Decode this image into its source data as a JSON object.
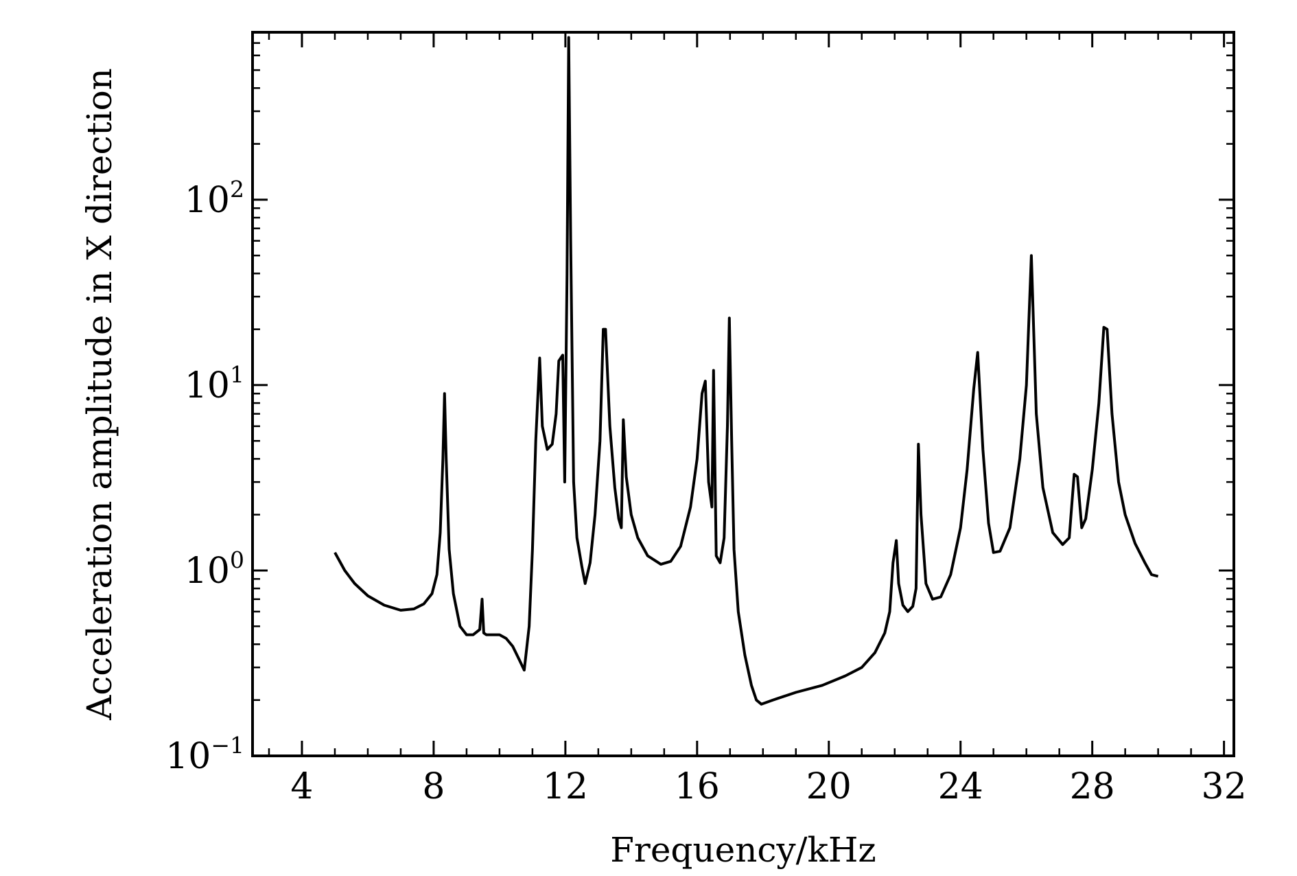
{
  "chart_data": {
    "type": "line",
    "title": "",
    "xlabel": "Frequency/kHz",
    "ylabel": "Acceleration amplitude in X direction",
    "xscale": "linear",
    "yscale": "log",
    "xlim": [
      2.5,
      32.3
    ],
    "ylim": [
      0.1,
      800
    ],
    "grid": false,
    "x_ticks": [
      4,
      8,
      12,
      16,
      20,
      24,
      28,
      32
    ],
    "y_ticks": [
      {
        "value": 0.1,
        "base": "10",
        "exp": "−1"
      },
      {
        "value": 1,
        "base": "10",
        "exp": "0"
      },
      {
        "value": 10,
        "base": "10",
        "exp": "1"
      },
      {
        "value": 100,
        "base": "10",
        "exp": "2"
      }
    ],
    "series": [
      {
        "color": "#000000",
        "points": [
          [
            5.0,
            1.25
          ],
          [
            5.3,
            1.0
          ],
          [
            5.6,
            0.85
          ],
          [
            6.0,
            0.73
          ],
          [
            6.5,
            0.65
          ],
          [
            7.0,
            0.61
          ],
          [
            7.4,
            0.62
          ],
          [
            7.7,
            0.66
          ],
          [
            7.95,
            0.75
          ],
          [
            8.1,
            0.95
          ],
          [
            8.2,
            1.6
          ],
          [
            8.28,
            4.0
          ],
          [
            8.33,
            9.0
          ],
          [
            8.38,
            4.0
          ],
          [
            8.47,
            1.3
          ],
          [
            8.6,
            0.75
          ],
          [
            8.8,
            0.5
          ],
          [
            9.0,
            0.45
          ],
          [
            9.2,
            0.45
          ],
          [
            9.4,
            0.48
          ],
          [
            9.47,
            0.7
          ],
          [
            9.52,
            0.46
          ],
          [
            9.6,
            0.45
          ],
          [
            9.8,
            0.45
          ],
          [
            10.0,
            0.45
          ],
          [
            10.2,
            0.43
          ],
          [
            10.4,
            0.39
          ],
          [
            10.6,
            0.33
          ],
          [
            10.75,
            0.29
          ],
          [
            10.9,
            0.5
          ],
          [
            11.0,
            1.3
          ],
          [
            11.1,
            5.0
          ],
          [
            11.22,
            14.0
          ],
          [
            11.3,
            6.0
          ],
          [
            11.45,
            4.5
          ],
          [
            11.6,
            4.8
          ],
          [
            11.72,
            7.0
          ],
          [
            11.8,
            13.5
          ],
          [
            11.92,
            14.5
          ],
          [
            11.98,
            3.0
          ],
          [
            12.05,
            40.0
          ],
          [
            12.1,
            750.0
          ],
          [
            12.16,
            60.0
          ],
          [
            12.25,
            3.0
          ],
          [
            12.35,
            1.5
          ],
          [
            12.5,
            1.05
          ],
          [
            12.6,
            0.85
          ],
          [
            12.75,
            1.1
          ],
          [
            12.9,
            2.0
          ],
          [
            13.05,
            5.0
          ],
          [
            13.15,
            20.0
          ],
          [
            13.22,
            20.0
          ],
          [
            13.35,
            6.0
          ],
          [
            13.5,
            2.8
          ],
          [
            13.62,
            1.9
          ],
          [
            13.7,
            1.7
          ],
          [
            13.76,
            6.5
          ],
          [
            13.85,
            3.2
          ],
          [
            14.0,
            2.0
          ],
          [
            14.2,
            1.5
          ],
          [
            14.5,
            1.2
          ],
          [
            14.9,
            1.08
          ],
          [
            15.2,
            1.12
          ],
          [
            15.5,
            1.35
          ],
          [
            15.8,
            2.2
          ],
          [
            16.0,
            4.0
          ],
          [
            16.15,
            9.0
          ],
          [
            16.25,
            10.5
          ],
          [
            16.35,
            3.0
          ],
          [
            16.45,
            2.2
          ],
          [
            16.5,
            12.0
          ],
          [
            16.58,
            1.2
          ],
          [
            16.7,
            1.1
          ],
          [
            16.82,
            1.5
          ],
          [
            16.92,
            6.0
          ],
          [
            16.98,
            23.0
          ],
          [
            17.05,
            5.0
          ],
          [
            17.12,
            1.3
          ],
          [
            17.25,
            0.6
          ],
          [
            17.45,
            0.35
          ],
          [
            17.65,
            0.24
          ],
          [
            17.8,
            0.2
          ],
          [
            17.95,
            0.19
          ],
          [
            18.3,
            0.2
          ],
          [
            19.0,
            0.22
          ],
          [
            19.8,
            0.24
          ],
          [
            20.5,
            0.27
          ],
          [
            21.0,
            0.3
          ],
          [
            21.4,
            0.36
          ],
          [
            21.7,
            0.46
          ],
          [
            21.85,
            0.6
          ],
          [
            21.95,
            1.1
          ],
          [
            22.05,
            1.45
          ],
          [
            22.12,
            0.85
          ],
          [
            22.25,
            0.65
          ],
          [
            22.4,
            0.6
          ],
          [
            22.55,
            0.64
          ],
          [
            22.65,
            0.8
          ],
          [
            22.72,
            4.8
          ],
          [
            22.8,
            2.0
          ],
          [
            22.95,
            0.85
          ],
          [
            23.15,
            0.7
          ],
          [
            23.4,
            0.72
          ],
          [
            23.7,
            0.95
          ],
          [
            24.0,
            1.7
          ],
          [
            24.2,
            3.5
          ],
          [
            24.4,
            9.5
          ],
          [
            24.52,
            15.0
          ],
          [
            24.68,
            4.5
          ],
          [
            24.85,
            1.8
          ],
          [
            25.0,
            1.25
          ],
          [
            25.2,
            1.27
          ],
          [
            25.5,
            1.7
          ],
          [
            25.8,
            4.0
          ],
          [
            26.0,
            10.0
          ],
          [
            26.15,
            50.0
          ],
          [
            26.3,
            7.0
          ],
          [
            26.5,
            2.8
          ],
          [
            26.8,
            1.6
          ],
          [
            27.1,
            1.38
          ],
          [
            27.3,
            1.5
          ],
          [
            27.45,
            3.3
          ],
          [
            27.55,
            3.2
          ],
          [
            27.68,
            1.7
          ],
          [
            27.8,
            1.9
          ],
          [
            28.0,
            3.5
          ],
          [
            28.2,
            8.0
          ],
          [
            28.35,
            20.5
          ],
          [
            28.45,
            20.0
          ],
          [
            28.6,
            7.0
          ],
          [
            28.8,
            3.0
          ],
          [
            29.0,
            2.0
          ],
          [
            29.3,
            1.4
          ],
          [
            29.6,
            1.1
          ],
          [
            29.8,
            0.95
          ],
          [
            30.0,
            0.93
          ]
        ]
      }
    ]
  }
}
